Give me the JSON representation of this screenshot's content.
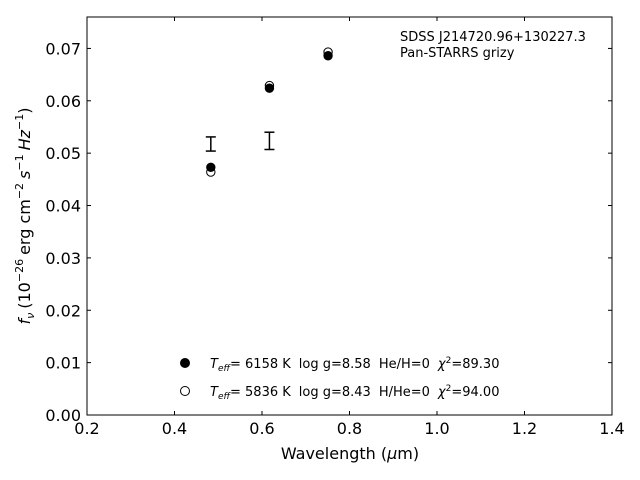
{
  "chart_data": {
    "type": "scatter",
    "xlabel_main": "Wavelength (",
    "xlabel_mu": "μ",
    "xlabel_unit": "m)",
    "ylabel_f": "f",
    "ylabel_nu": "ν",
    "ylabel_open": "(10",
    "ylabel_exp1": "−26",
    "ylabel_erg": "erg cm",
    "ylabel_exp2": "−2",
    "ylabel_s": "s",
    "ylabel_exp3": "−1",
    "ylabel_hz": "Hz",
    "ylabel_exp4": "−1",
    "ylabel_close": ")",
    "annotation_line1": "SDSS J214720.96+130227.3",
    "annotation_line2": "Pan-STARRS grizy",
    "xlim": [
      0.2,
      1.4
    ],
    "ylim": [
      0.0,
      0.076
    ],
    "x_ticks": [
      "0.2",
      "0.4",
      "0.6",
      "0.8",
      "1.0",
      "1.2",
      "1.4"
    ],
    "y_ticks": [
      "0.00",
      "0.01",
      "0.02",
      "0.03",
      "0.04",
      "0.05",
      "0.06",
      "0.07"
    ],
    "observed": {
      "x": [
        0.483,
        0.617
      ],
      "y_low": [
        0.0504,
        0.0507
      ],
      "y_high": [
        0.0531,
        0.054
      ]
    },
    "series": [
      {
        "marker": "filled",
        "x": [
          0.483,
          0.617,
          0.751
        ],
        "y": [
          0.0473,
          0.0624,
          0.0686
        ],
        "legend": {
          "teff_sub": "eff",
          "teff_val": "=  6158 K",
          "logg": "log g=8.58",
          "comp": "He/H=0",
          "chi_val": "=89.30"
        }
      },
      {
        "marker": "open",
        "x": [
          0.483,
          0.617,
          0.751
        ],
        "y": [
          0.0464,
          0.0629,
          0.0693
        ],
        "legend": {
          "teff_sub": "eff",
          "teff_val": "=  5836 K",
          "logg": "log g=8.43",
          "comp": "H/He=0",
          "chi_val": "=94.00"
        }
      }
    ],
    "legend_T": "T",
    "legend_chi": "χ",
    "legend_chi_exp": "2",
    "legend_placement": "lower-center",
    "grid": false
  }
}
